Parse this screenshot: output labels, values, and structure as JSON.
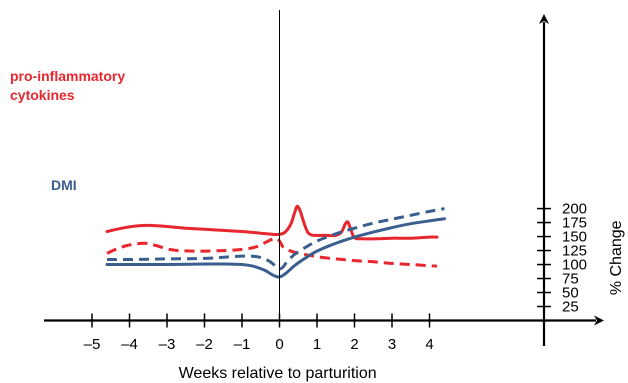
{
  "chart_data": {
    "type": "line",
    "title": "",
    "xlabel": "Weeks relative to parturition",
    "ylabel": "% Change",
    "xlim": [
      -5.5,
      4.6
    ],
    "ylim": [
      0,
      215
    ],
    "x_ticks": [
      -5,
      -4,
      -3,
      -2,
      -1,
      0,
      1,
      2,
      3,
      4
    ],
    "x_tick_labels": [
      "–5",
      "–4",
      "–3",
      "–2",
      "–1",
      "0",
      "1",
      "2",
      "3",
      "4"
    ],
    "y_ticks": [
      25,
      50,
      75,
      100,
      125,
      150,
      175,
      200
    ],
    "y_tick_labels": [
      "25",
      "50",
      "75",
      "100",
      "125",
      "150",
      "175",
      "200"
    ],
    "grid": false,
    "legend": "none",
    "colors": {
      "red": "#e8262d",
      "blue": "#3a5f8f"
    },
    "series_labels": [
      {
        "lines": [
          "pro-inflammatory",
          "cytokines"
        ],
        "color": "#e8262d"
      },
      {
        "lines": [
          "DMI"
        ],
        "color": "#3a5f8f"
      }
    ],
    "series": [
      {
        "color": "#e8262d",
        "style": "solid",
        "x": [
          -4.6,
          -4.2,
          -3.8,
          -3.5,
          -3.0,
          -2.5,
          -2.0,
          -1.5,
          -1.0,
          -0.5,
          -0.2,
          0.0,
          0.15,
          0.3,
          0.4,
          0.47,
          0.55,
          0.65,
          0.75,
          0.85,
          1.0,
          1.2,
          1.5,
          1.65,
          1.75,
          1.82,
          1.9,
          2.0,
          2.2,
          2.6,
          3.0,
          3.5,
          4.0,
          4.2
        ],
        "y": [
          159,
          165,
          169,
          170,
          168,
          165,
          163,
          161,
          159,
          156,
          154,
          154,
          158,
          172,
          192,
          204,
          196,
          175,
          158,
          153,
          152,
          152,
          152,
          158,
          172,
          176,
          163,
          148,
          146,
          146,
          147,
          147,
          149,
          149
        ]
      },
      {
        "color": "#e8262d",
        "style": "dashed",
        "x": [
          -4.6,
          -4.3,
          -4.0,
          -3.6,
          -3.3,
          -3.0,
          -2.7,
          -2.3,
          -2.0,
          -1.5,
          -1.0,
          -0.6,
          -0.3,
          -0.1,
          0.0,
          0.1,
          0.3,
          0.6,
          1.0,
          1.5,
          2.0,
          2.5,
          3.0,
          3.5,
          4.0,
          4.2
        ],
        "y": [
          120,
          129,
          135,
          138,
          134,
          128,
          125,
          124,
          124,
          125,
          127,
          132,
          142,
          147,
          142,
          131,
          124,
          119,
          114,
          110,
          107,
          105,
          102,
          100,
          98,
          97
        ]
      },
      {
        "color": "#3a5f8f",
        "style": "dashed",
        "x": [
          -4.6,
          -4.0,
          -3.0,
          -2.0,
          -1.5,
          -1.0,
          -0.6,
          -0.3,
          -0.1,
          0.0,
          0.1,
          0.2,
          0.4,
          0.7,
          1.0,
          1.5,
          2.0,
          2.5,
          3.0,
          3.5,
          4.0,
          4.4
        ],
        "y": [
          109,
          109,
          110,
          111,
          113,
          115,
          114,
          107,
          97,
          92,
          96,
          105,
          118,
          131,
          142,
          155,
          165,
          174,
          181,
          188,
          195,
          200
        ]
      },
      {
        "color": "#3a5f8f",
        "style": "solid",
        "x": [
          -4.6,
          -4.0,
          -3.0,
          -2.0,
          -1.5,
          -1.0,
          -0.7,
          -0.4,
          -0.2,
          -0.05,
          0.05,
          0.2,
          0.4,
          0.7,
          1.0,
          1.5,
          2.0,
          2.5,
          3.0,
          3.5,
          4.0,
          4.4
        ],
        "y": [
          100,
          100,
          100,
          101,
          101,
          100,
          97,
          90,
          82,
          78,
          79,
          86,
          98,
          112,
          124,
          138,
          149,
          158,
          166,
          173,
          178,
          182
        ]
      }
    ]
  }
}
